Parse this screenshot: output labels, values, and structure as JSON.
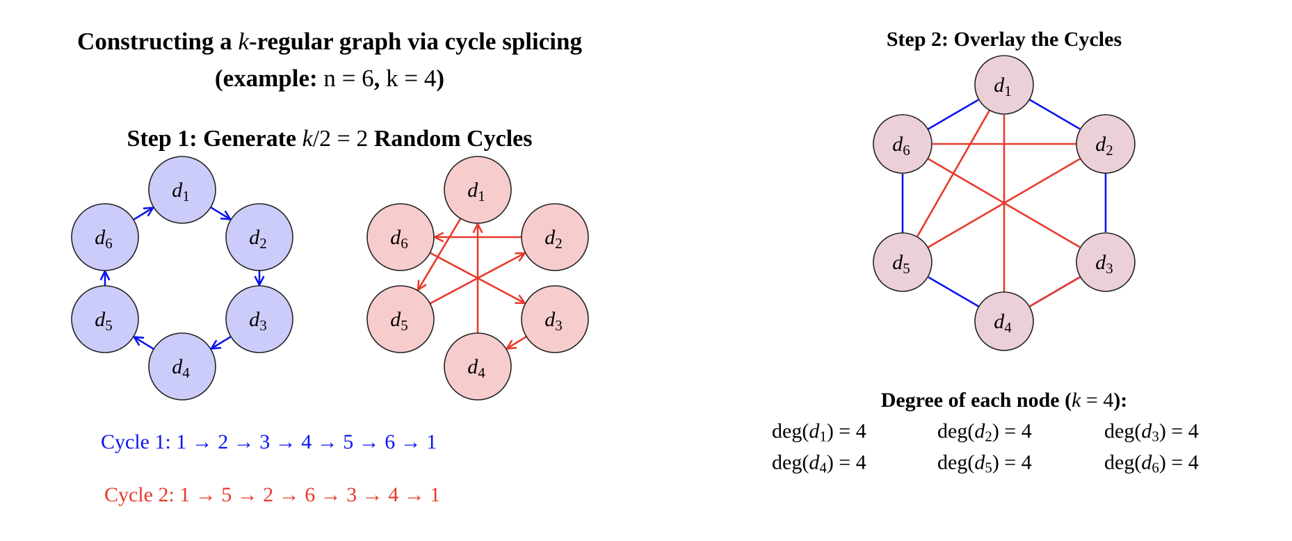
{
  "title": {
    "line1": {
      "a": "Constructing a ",
      "k": "k",
      "b": "-regular graph via cycle splicing"
    },
    "line2": {
      "a": "(example: ",
      "math1": "n = 6",
      "comma": ", ",
      "math2": "k = 4",
      "b": ")"
    }
  },
  "step1": {
    "a": "Step 1: Generate ",
    "math": "k",
    "rest": "/2 = 2",
    "b": " Random Cycles"
  },
  "step2": {
    "heading": "Step 2: Overlay the Cycles"
  },
  "colors": {
    "cycle1": "#0a14f0",
    "cycle2": "#e8392b",
    "cycle1_fill": "#ccccfa",
    "cycle2_fill": "#f7cccc",
    "overlay_fill": "#ebd0d7",
    "node_stroke": "#222222"
  },
  "nodes": [
    {
      "id": 1,
      "label": "d",
      "sub": "1"
    },
    {
      "id": 2,
      "label": "d",
      "sub": "2"
    },
    {
      "id": 3,
      "label": "d",
      "sub": "3"
    },
    {
      "id": 4,
      "label": "d",
      "sub": "4"
    },
    {
      "id": 5,
      "label": "d",
      "sub": "5"
    },
    {
      "id": 6,
      "label": "d",
      "sub": "6"
    }
  ],
  "cycle1": {
    "order": [
      1,
      2,
      3,
      4,
      5,
      6,
      1
    ],
    "text": "Cycle 1: 1 → 2 → 3 → 4 → 5 → 6 → 1"
  },
  "cycle2": {
    "order": [
      1,
      5,
      2,
      6,
      3,
      4,
      1
    ],
    "text": "Cycle 2: 1 → 5 → 2 → 6 → 3 → 4 → 1"
  },
  "degree": {
    "heading": {
      "a": "Degree of each node (",
      "math": "k",
      "eq": " = 4",
      "b": "):"
    },
    "items": [
      {
        "fn": "deg(",
        "d": "d",
        "sub": "1",
        "rest": ") = 4"
      },
      {
        "fn": "deg(",
        "d": "d",
        "sub": "2",
        "rest": ") = 4"
      },
      {
        "fn": "deg(",
        "d": "d",
        "sub": "3",
        "rest": ") = 4"
      },
      {
        "fn": "deg(",
        "d": "d",
        "sub": "4",
        "rest": ") = 4"
      },
      {
        "fn": "deg(",
        "d": "d",
        "sub": "5",
        "rest": ") = 4"
      },
      {
        "fn": "deg(",
        "d": "d",
        "sub": "6",
        "rest": ") = 4"
      }
    ]
  }
}
